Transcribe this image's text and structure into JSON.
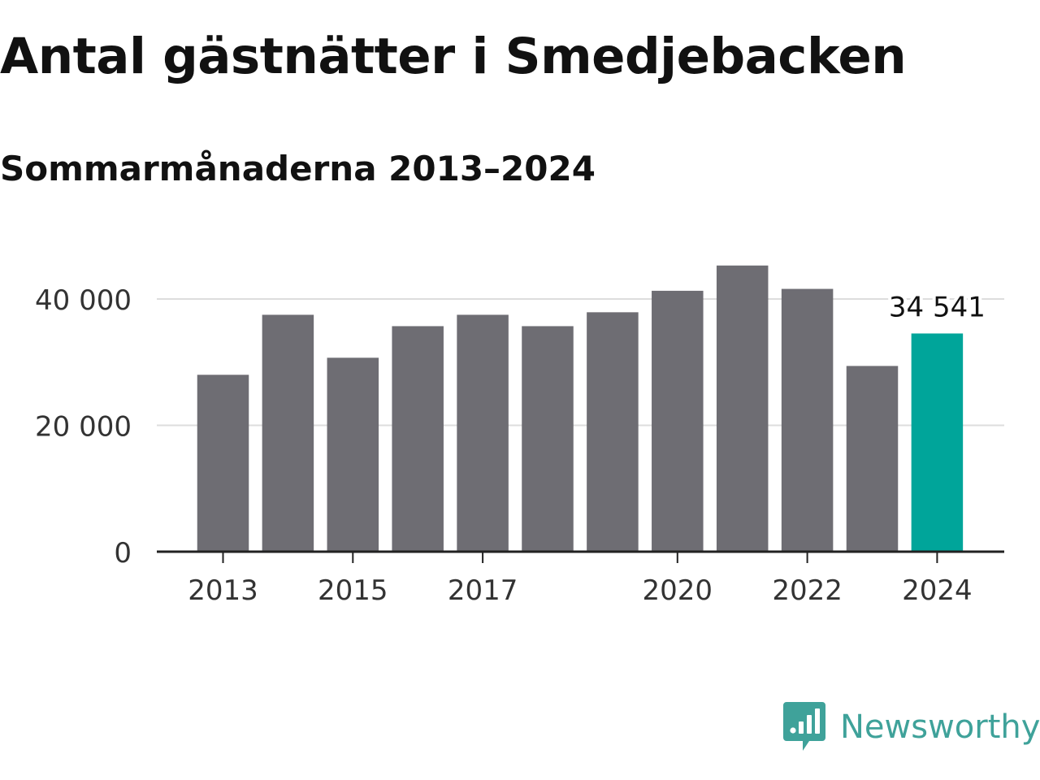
{
  "header": {
    "title": "Antal gästnätter i Smedjebacken",
    "subtitle": "Sommarmånaderna 2013–2024"
  },
  "colors": {
    "bar": "#6e6d73",
    "highlight": "#00a59a",
    "grid": "#dddddd",
    "axis": "#222222",
    "text": "#333333",
    "brand": "#3fa29a"
  },
  "chart_data": {
    "type": "bar",
    "title": "Antal gästnätter i Smedjebacken",
    "subtitle": "Sommarmånaderna 2013–2024",
    "xlabel": "",
    "ylabel": "",
    "categories": [
      "2013",
      "2014",
      "2015",
      "2016",
      "2017",
      "2018",
      "2019",
      "2020",
      "2021",
      "2022",
      "2023",
      "2024"
    ],
    "values": [
      28000,
      37500,
      30700,
      35700,
      37500,
      35700,
      37900,
      41300,
      45300,
      41600,
      29400,
      34541
    ],
    "highlight_index": 11,
    "annotation": {
      "index": 11,
      "label": "34 541"
    },
    "yticks": [
      {
        "value": 0,
        "label": "0"
      },
      {
        "value": 20000,
        "label": "20 000"
      },
      {
        "value": 40000,
        "label": "40 000"
      }
    ],
    "xtick_labels": [
      "2013",
      "",
      "2015",
      "",
      "2017",
      "",
      "",
      "2020",
      "",
      "2022",
      "",
      "2024"
    ],
    "ylim": [
      0,
      47000
    ],
    "grid": true,
    "legend": "none"
  },
  "branding": {
    "name": "Newsworthy",
    "icon": "newsworthy-logo-icon"
  }
}
